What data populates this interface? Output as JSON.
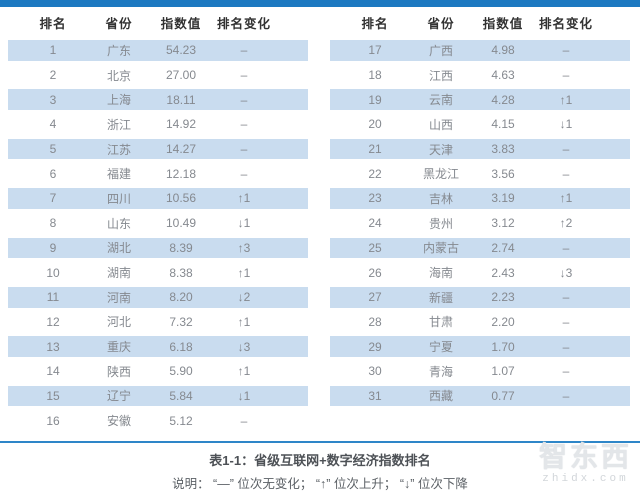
{
  "colors": {
    "accent_bar": "#1c79c1",
    "row_stripe": "#c9dcef",
    "divider": "#2e86c8"
  },
  "columns": [
    "排名",
    "省份",
    "指数值",
    "排名变化"
  ],
  "tables": [
    {
      "name": "ranks-1-16",
      "rows": [
        [
          "1",
          "广东",
          "54.23",
          "–"
        ],
        [
          "2",
          "北京",
          "27.00",
          "–"
        ],
        [
          "3",
          "上海",
          "18.11",
          "–"
        ],
        [
          "4",
          "浙江",
          "14.92",
          "–"
        ],
        [
          "5",
          "江苏",
          "14.27",
          "–"
        ],
        [
          "6",
          "福建",
          "12.18",
          "–"
        ],
        [
          "7",
          "四川",
          "10.56",
          "↑1"
        ],
        [
          "8",
          "山东",
          "10.49",
          "↓1"
        ],
        [
          "9",
          "湖北",
          "8.39",
          "↑3"
        ],
        [
          "10",
          "湖南",
          "8.38",
          "↑1"
        ],
        [
          "11",
          "河南",
          "8.20",
          "↓2"
        ],
        [
          "12",
          "河北",
          "7.32",
          "↑1"
        ],
        [
          "13",
          "重庆",
          "6.18",
          "↓3"
        ],
        [
          "14",
          "陕西",
          "5.90",
          "↑1"
        ],
        [
          "15",
          "辽宁",
          "5.84",
          "↓1"
        ],
        [
          "16",
          "安徽",
          "5.12",
          "–"
        ]
      ]
    },
    {
      "name": "ranks-17-31",
      "rows": [
        [
          "17",
          "广西",
          "4.98",
          "–"
        ],
        [
          "18",
          "江西",
          "4.63",
          "–"
        ],
        [
          "19",
          "云南",
          "4.28",
          "↑1"
        ],
        [
          "20",
          "山西",
          "4.15",
          "↓1"
        ],
        [
          "21",
          "天津",
          "3.83",
          "–"
        ],
        [
          "22",
          "黑龙江",
          "3.56",
          "–"
        ],
        [
          "23",
          "吉林",
          "3.19",
          "↑1"
        ],
        [
          "24",
          "贵州",
          "3.12",
          "↑2"
        ],
        [
          "25",
          "内蒙古",
          "2.74",
          "–"
        ],
        [
          "26",
          "海南",
          "2.43",
          "↓3"
        ],
        [
          "27",
          "新疆",
          "2.23",
          "–"
        ],
        [
          "28",
          "甘肃",
          "2.20",
          "–"
        ],
        [
          "29",
          "宁夏",
          "1.70",
          "–"
        ],
        [
          "30",
          "青海",
          "1.07",
          "–"
        ],
        [
          "31",
          "西藏",
          "0.77",
          "–"
        ]
      ]
    }
  ],
  "footer": {
    "caption": "表1-1：省级互联网+数字经济指数排名",
    "note": "说明： “—” 位次无变化； “↑” 位次上升； “↓” 位次下降"
  },
  "watermark": {
    "logo_text": "智东西",
    "domain": "zhidx.com"
  }
}
